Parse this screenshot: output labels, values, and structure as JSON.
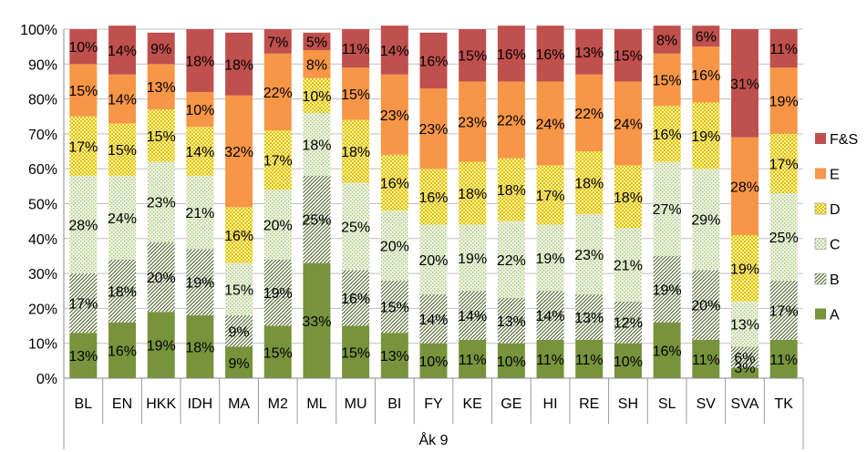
{
  "chart_data": {
    "type": "bar",
    "stacked": true,
    "percent_stacked": true,
    "group_label": "Åk 9",
    "categories": [
      "BL",
      "EN",
      "HKK",
      "IDH",
      "MA",
      "M2",
      "ML",
      "MU",
      "BI",
      "FY",
      "KE",
      "GE",
      "HI",
      "RE",
      "SH",
      "SL",
      "SV",
      "SVA",
      "TK"
    ],
    "y_ticks": [
      "0%",
      "10%",
      "20%",
      "30%",
      "40%",
      "50%",
      "60%",
      "70%",
      "80%",
      "90%",
      "100%"
    ],
    "ylim": [
      0,
      100
    ],
    "legend_position": "right",
    "series": [
      {
        "name": "A",
        "color": "#77933C",
        "pattern": "solid",
        "values": [
          13,
          16,
          19,
          18,
          9,
          15,
          33,
          15,
          13,
          10,
          11,
          10,
          11,
          11,
          10,
          16,
          11,
          3,
          11
        ]
      },
      {
        "name": "B",
        "color": "#4F6228",
        "pattern": "diagonal",
        "values": [
          17,
          18,
          20,
          19,
          9,
          19,
          25,
          16,
          15,
          14,
          14,
          13,
          14,
          13,
          12,
          19,
          20,
          6,
          17
        ]
      },
      {
        "name": "C",
        "color": "#C3D69B",
        "pattern": "dotted",
        "values": [
          28,
          24,
          23,
          21,
          15,
          20,
          18,
          25,
          20,
          20,
          19,
          22,
          19,
          23,
          21,
          27,
          29,
          13,
          25
        ]
      },
      {
        "name": "D",
        "color": "#E0C000",
        "pattern": "checker",
        "values": [
          17,
          15,
          15,
          14,
          16,
          17,
          10,
          18,
          16,
          16,
          18,
          18,
          17,
          18,
          18,
          16,
          19,
          19,
          17
        ]
      },
      {
        "name": "E",
        "color": "#F79646",
        "pattern": "solid",
        "values": [
          15,
          14,
          13,
          10,
          32,
          22,
          8,
          15,
          23,
          23,
          23,
          22,
          24,
          22,
          24,
          15,
          16,
          28,
          19
        ]
      },
      {
        "name": "F&S",
        "color": "#C0504D",
        "pattern": "solid",
        "values": [
          10,
          14,
          9,
          18,
          18,
          7,
          5,
          11,
          14,
          16,
          15,
          16,
          16,
          13,
          15,
          8,
          6,
          31,
          11
        ]
      }
    ]
  }
}
